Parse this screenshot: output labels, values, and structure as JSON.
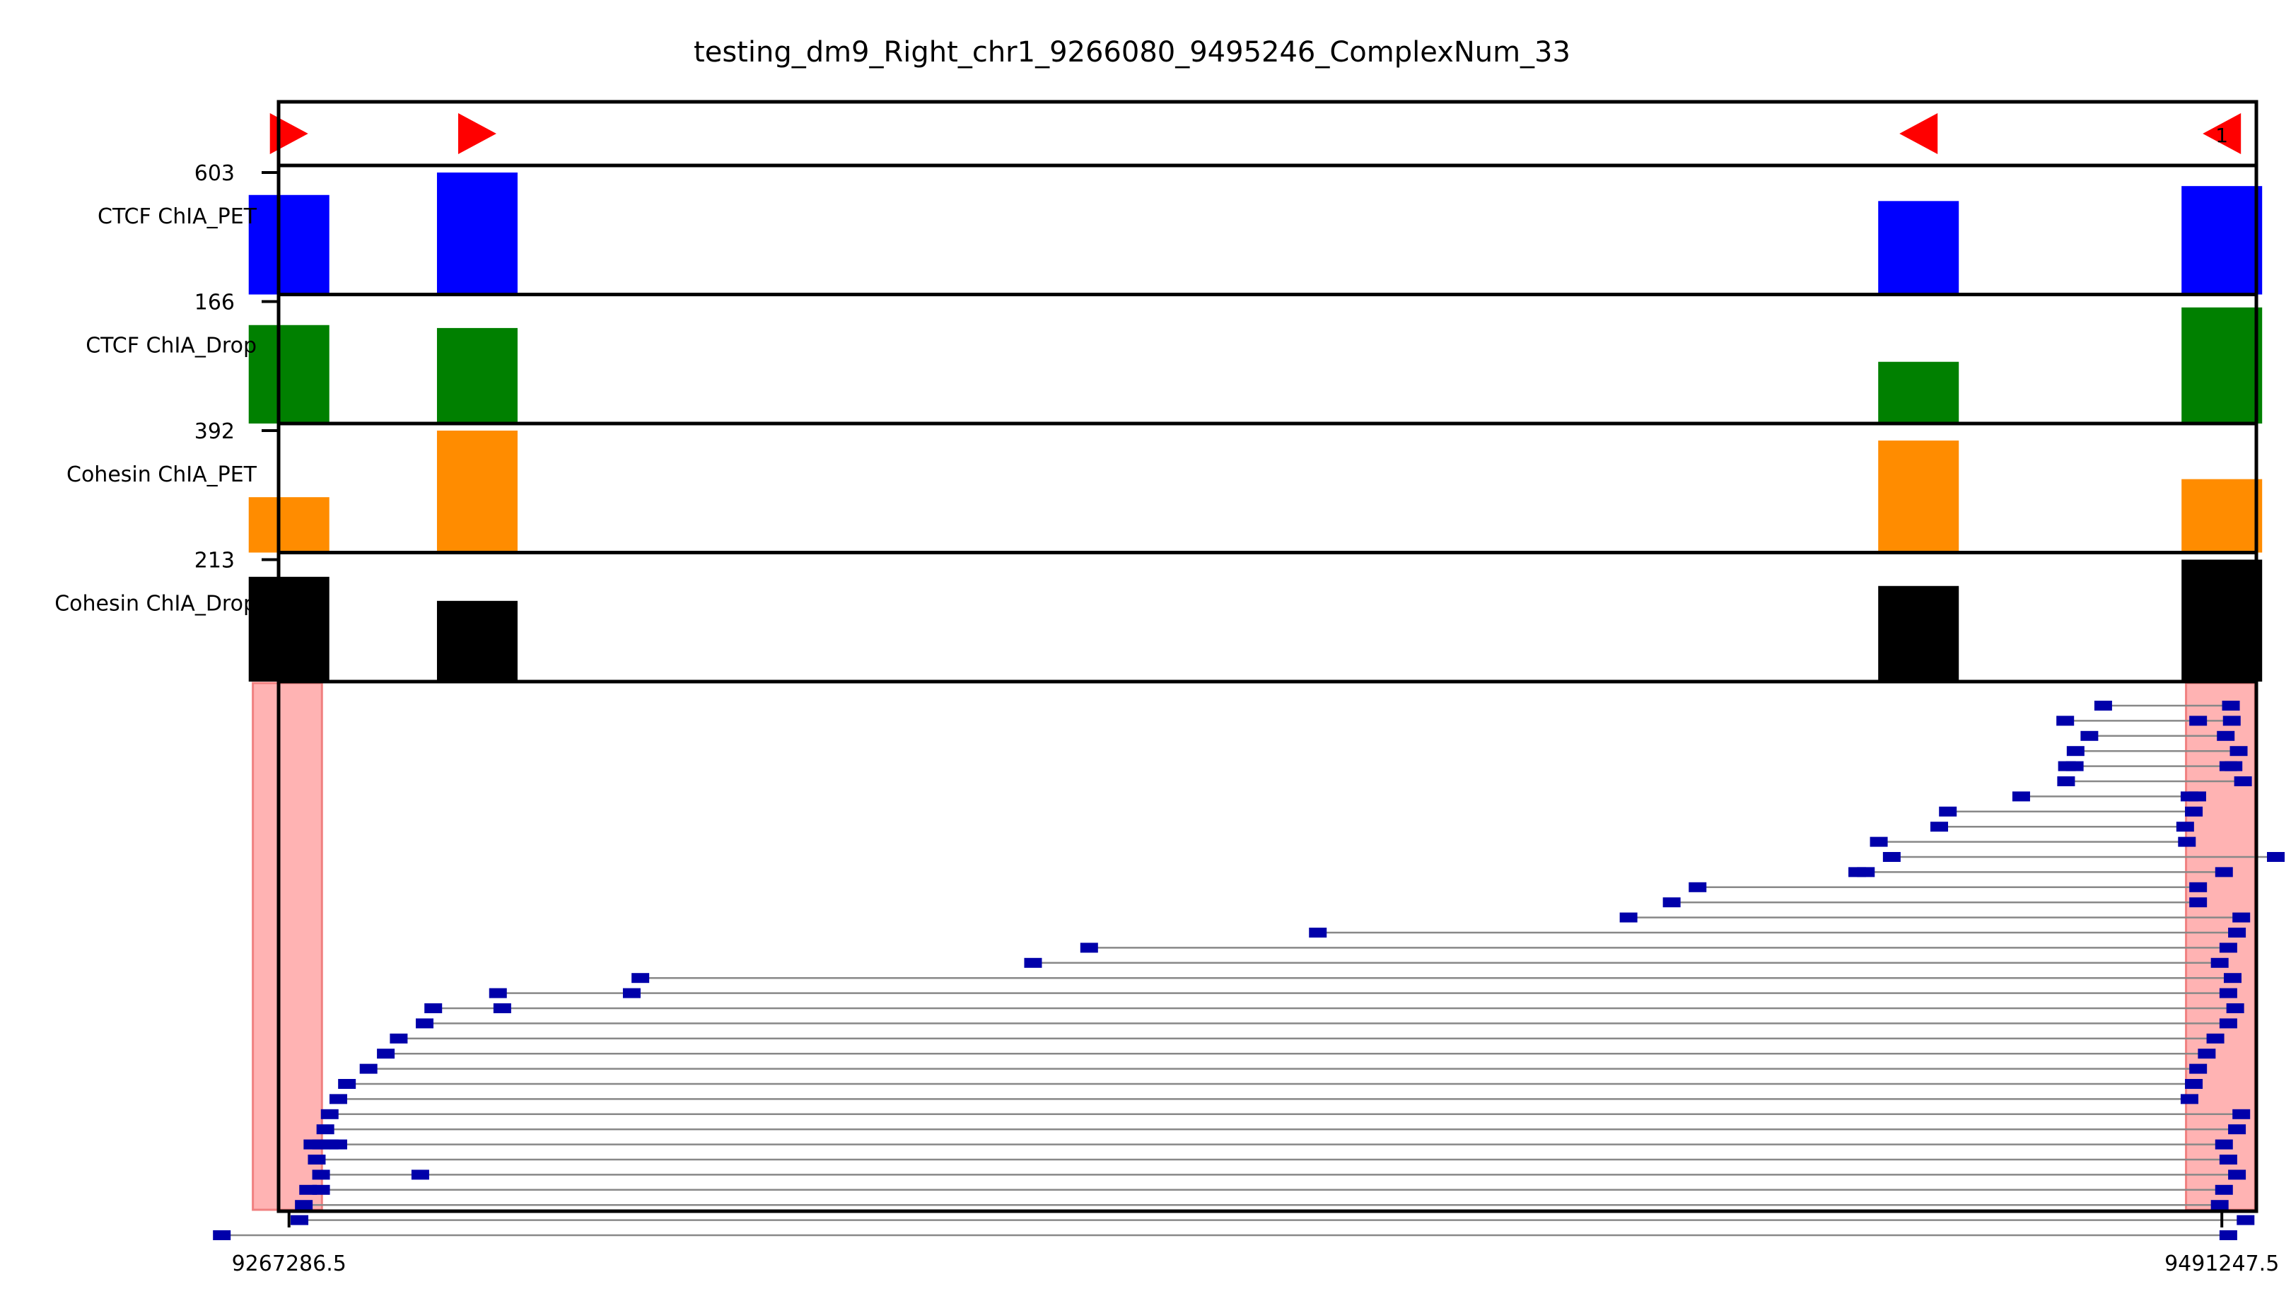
{
  "chart_data": {
    "type": "bar",
    "title": "testing_dm9_Right_chr1_9266080_9495246_ComplexNum_33",
    "xlim": [
      9266080,
      9495246
    ],
    "xticks": [
      {
        "value": 9267286.5,
        "label": "9267286.5"
      },
      {
        "value": 9491247.5,
        "label": "9491247.5"
      }
    ],
    "motifs": [
      {
        "x": 9267286.5,
        "direction": "right",
        "label": ""
      },
      {
        "x": 9289100,
        "direction": "right",
        "label": ""
      },
      {
        "x": 9456100,
        "direction": "left",
        "label": ""
      },
      {
        "x": 9491247.5,
        "direction": "left",
        "label": "1"
      }
    ],
    "tracks": [
      {
        "name": "CTCF ChIA_PET",
        "max_label": "603",
        "max": 603,
        "color": "#0000ff",
        "bars": [
          {
            "x": 9267286.5,
            "value": 492
          },
          {
            "x": 9289100,
            "value": 603
          },
          {
            "x": 9456100,
            "value": 462
          },
          {
            "x": 9491247.5,
            "value": 536
          }
        ]
      },
      {
        "name": "CTCF ChIA_Drop",
        "max_label": "166",
        "max": 166,
        "color": "#008000",
        "bars": [
          {
            "x": 9267286.5,
            "value": 134
          },
          {
            "x": 9289100,
            "value": 130
          },
          {
            "x": 9456100,
            "value": 84
          },
          {
            "x": 9491247.5,
            "value": 158
          }
        ]
      },
      {
        "name": "Cohesin ChIA_PET",
        "max_label": "392",
        "max": 392,
        "color": "#ff8c00",
        "bars": [
          {
            "x": 9267286.5,
            "value": 178
          },
          {
            "x": 9289100,
            "value": 392
          },
          {
            "x": 9456100,
            "value": 360
          },
          {
            "x": 9491247.5,
            "value": 236
          }
        ]
      },
      {
        "name": "Cohesin ChIA_Drop",
        "max_label": "213",
        "max": 213,
        "color": "#000000",
        "bars": [
          {
            "x": 9267286.5,
            "value": 183
          },
          {
            "x": 9289100,
            "value": 141
          },
          {
            "x": 9456100,
            "value": 167
          },
          {
            "x": 9491247.5,
            "value": 213
          }
        ]
      }
    ],
    "anchor_regions": [
      {
        "start": 9263100,
        "end": 9271100
      },
      {
        "start": 9487100,
        "end": 9495100
      }
    ],
    "colors": {
      "fragment": "#0000aa",
      "link": "#888888",
      "anchor": "#ffb3b3",
      "anchor_edge": "#f08080"
    },
    "complexes": [
      {
        "fragments": [
          9477500,
          9492300
        ]
      },
      {
        "fragments": [
          9473100,
          9488500,
          9492400
        ]
      },
      {
        "fragments": [
          9475900,
          9491700
        ]
      },
      {
        "fragments": [
          9474300,
          9493200
        ]
      },
      {
        "fragments": [
          9473300,
          9474200,
          9492000,
          9492600
        ]
      },
      {
        "fragments": [
          9473200,
          9493700
        ]
      },
      {
        "fragments": [
          9468000,
          9487500,
          9488400
        ]
      },
      {
        "fragments": [
          9459500,
          9488000
        ]
      },
      {
        "fragments": [
          9458500,
          9487000
        ]
      },
      {
        "fragments": [
          9451500,
          9487200
        ]
      },
      {
        "fragments": [
          9453000,
          9497500
        ]
      },
      {
        "fragments": [
          9449000,
          9450000,
          9491500
        ]
      },
      {
        "fragments": [
          9430500,
          9488500
        ]
      },
      {
        "fragments": [
          9427500,
          9488500
        ]
      },
      {
        "fragments": [
          9422500,
          9493500
        ]
      },
      {
        "fragments": [
          9386500,
          9493000
        ]
      },
      {
        "fragments": [
          9360000,
          9492000
        ]
      },
      {
        "fragments": [
          9353500,
          9491000
        ]
      },
      {
        "fragments": [
          9308000,
          9492500
        ]
      },
      {
        "fragments": [
          9291500,
          9307000,
          9492000
        ]
      },
      {
        "fragments": [
          9284000,
          9292000,
          9492800
        ]
      },
      {
        "fragments": [
          9283000,
          9492000
        ]
      },
      {
        "fragments": [
          9280000,
          9490500
        ]
      },
      {
        "fragments": [
          9278500,
          9489500
        ]
      },
      {
        "fragments": [
          9276500,
          9488500
        ]
      },
      {
        "fragments": [
          9274000,
          9488000
        ]
      },
      {
        "fragments": [
          9273000,
          9487500
        ]
      },
      {
        "fragments": [
          9272000,
          9493500
        ]
      },
      {
        "fragments": [
          9271500,
          9493000
        ]
      },
      {
        "fragments": [
          9270000,
          9271000,
          9272000,
          9273000,
          9491500
        ]
      },
      {
        "fragments": [
          9270500,
          9492000
        ]
      },
      {
        "fragments": [
          9271000,
          9282500,
          9493000
        ]
      },
      {
        "fragments": [
          9269500,
          9271000,
          9491500
        ]
      },
      {
        "fragments": [
          9269000,
          9491000
        ]
      },
      {
        "fragments": [
          9268500,
          9494000
        ]
      },
      {
        "fragments": [
          9259500,
          9492000
        ]
      }
    ]
  }
}
